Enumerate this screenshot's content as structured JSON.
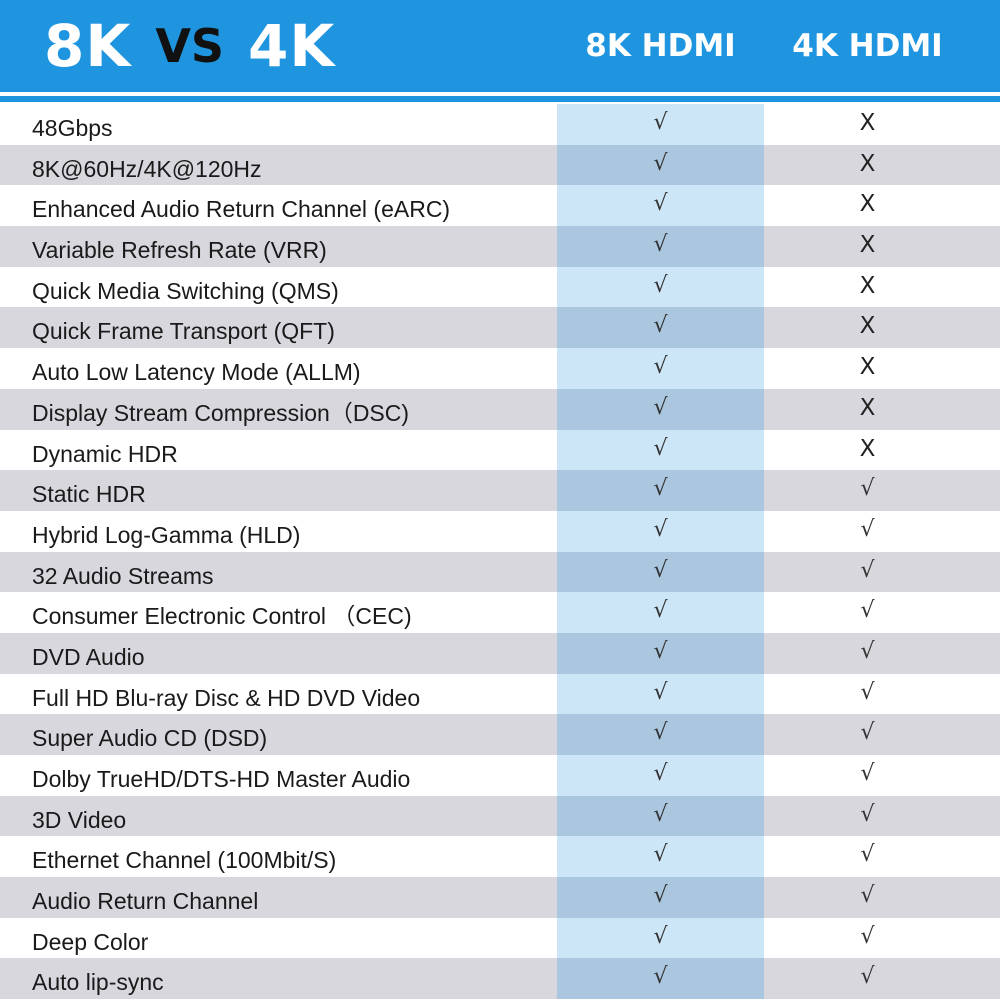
{
  "header": {
    "title_left": "8K",
    "title_vs": "VS",
    "title_right": "4K",
    "col_8k": "8K HDMI",
    "col_4k": "4K HDMI"
  },
  "colors": {
    "header_blue": "#1f95e0",
    "row_gray": "#d7d7dd",
    "col_highlight_light": "#cde6f7",
    "col_highlight_dark": "#aac7df"
  },
  "rows": [
    {
      "feature": "48Gbps",
      "hdmi8k": "√",
      "hdmi4k": "X"
    },
    {
      "feature": "8K@60Hz/4K@120Hz",
      "hdmi8k": "√",
      "hdmi4k": "X"
    },
    {
      "feature": "Enhanced Audio Return Channel (eARC)",
      "hdmi8k": "√",
      "hdmi4k": "X"
    },
    {
      "feature": "Variable Refresh Rate (VRR)",
      "hdmi8k": "√",
      "hdmi4k": "X"
    },
    {
      "feature": "Quick Media Switching (QMS)",
      "hdmi8k": "√",
      "hdmi4k": "X"
    },
    {
      "feature": "Quick Frame Transport (QFT)",
      "hdmi8k": "√",
      "hdmi4k": "X"
    },
    {
      "feature": "Auto Low Latency Mode (ALLM)",
      "hdmi8k": "√",
      "hdmi4k": "X"
    },
    {
      "feature": "Display Stream Compression（DSC)",
      "hdmi8k": "√",
      "hdmi4k": "X"
    },
    {
      "feature": "Dynamic HDR",
      "hdmi8k": "√",
      "hdmi4k": "X"
    },
    {
      "feature": "Static HDR",
      "hdmi8k": "√",
      "hdmi4k": "√"
    },
    {
      "feature": "Hybrid Log-Gamma (HLD)",
      "hdmi8k": "√",
      "hdmi4k": "√"
    },
    {
      "feature": "32 Audio Streams",
      "hdmi8k": "√",
      "hdmi4k": "√"
    },
    {
      "feature": "Consumer Electronic Control （CEC)",
      "hdmi8k": "√",
      "hdmi4k": "√"
    },
    {
      "feature": "DVD Audio",
      "hdmi8k": "√",
      "hdmi4k": "√"
    },
    {
      "feature": "Full HD Blu-ray Disc & HD DVD Video",
      "hdmi8k": "√",
      "hdmi4k": "√"
    },
    {
      "feature": "Super Audio CD (DSD)",
      "hdmi8k": "√",
      "hdmi4k": "√"
    },
    {
      "feature": "Dolby TrueHD/DTS-HD Master Audio",
      "hdmi8k": "√",
      "hdmi4k": "√"
    },
    {
      "feature": "3D Video",
      "hdmi8k": "√",
      "hdmi4k": "√"
    },
    {
      "feature": "Ethernet Channel (100Mbit/S)",
      "hdmi8k": "√",
      "hdmi4k": "√"
    },
    {
      "feature": "Audio Return Channel",
      "hdmi8k": "√",
      "hdmi4k": "√"
    },
    {
      "feature": "Deep Color",
      "hdmi8k": "√",
      "hdmi4k": "√"
    },
    {
      "feature": "Auto lip-sync",
      "hdmi8k": "√",
      "hdmi4k": "√"
    }
  ]
}
